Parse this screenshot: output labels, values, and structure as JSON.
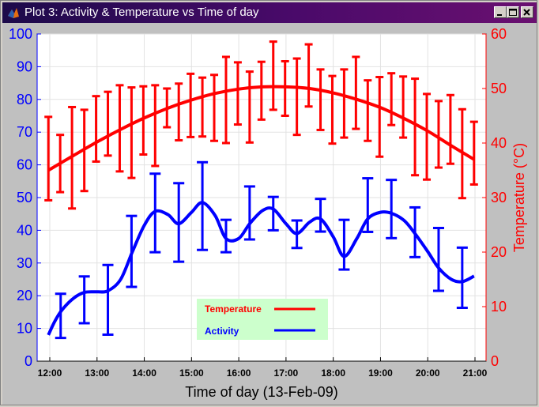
{
  "window": {
    "title": "Plot 3: Activity & Temperature vs Time of day",
    "minimize_icon": "minimize-icon",
    "maximize_icon": "maximize-icon",
    "close_icon": "close-icon",
    "app_icon": "matlab-icon"
  },
  "colors": {
    "temperature": "#ff0000",
    "activity": "#0000ff",
    "legend_bg": "#ccffcc",
    "plot_bg": "#ffffff",
    "figure_bg": "#c0c0c0"
  },
  "chart_data": {
    "type": "line",
    "title": "",
    "xlabel": "Time of day (13-Feb-09)",
    "ylabel_left": "",
    "ylabel_right": "Temperature (°C)",
    "x_ticks": [
      "12:00",
      "13:00",
      "14:00",
      "15:00",
      "16:00",
      "17:00",
      "18:00",
      "19:00",
      "20:00",
      "21:00"
    ],
    "xlim_hours": [
      11.75,
      21.25
    ],
    "ylim_left": [
      0,
      100
    ],
    "yticks_left": [
      "0",
      "10",
      "20",
      "30",
      "40",
      "50",
      "60",
      "70",
      "80",
      "90",
      "100"
    ],
    "ylim_right": [
      0,
      60
    ],
    "yticks_right": [
      "0",
      "10",
      "20",
      "30",
      "40",
      "50",
      "60"
    ],
    "grid": true,
    "legend": {
      "placement": "bottom-center",
      "entries": [
        {
          "label": "Temperature",
          "series": "temperature"
        },
        {
          "label": "Activity",
          "series": "activity"
        }
      ]
    },
    "series": [
      {
        "name": "Temperature",
        "axis": "right",
        "color": "#ff0000",
        "points": [
          {
            "x": 11.97,
            "y": 37.4,
            "lo": 29.5,
            "hi": 44.8
          },
          {
            "x": 12.22,
            "y": 36.5,
            "lo": 31.0,
            "hi": 41.5
          },
          {
            "x": 12.47,
            "y": 37.8,
            "lo": 28.0,
            "hi": 46.6
          },
          {
            "x": 12.73,
            "y": 38.8,
            "lo": 31.2,
            "hi": 46.1
          },
          {
            "x": 12.98,
            "y": 41.6,
            "lo": 36.6,
            "hi": 48.6
          },
          {
            "x": 13.23,
            "y": 42.5,
            "lo": 37.7,
            "hi": 49.4
          },
          {
            "x": 13.48,
            "y": 44.4,
            "lo": 34.8,
            "hi": 50.6
          },
          {
            "x": 13.73,
            "y": 42.4,
            "lo": 33.6,
            "hi": 50.2
          },
          {
            "x": 13.98,
            "y": 44.4,
            "lo": 37.9,
            "hi": 50.4
          },
          {
            "x": 14.23,
            "y": 43.3,
            "lo": 35.8,
            "hi": 50.6
          },
          {
            "x": 14.48,
            "y": 47.7,
            "lo": 42.9,
            "hi": 50.0
          },
          {
            "x": 14.73,
            "y": 46.8,
            "lo": 40.5,
            "hi": 50.9
          },
          {
            "x": 14.98,
            "y": 48.0,
            "lo": 41.1,
            "hi": 52.7
          },
          {
            "x": 15.23,
            "y": 48.1,
            "lo": 41.2,
            "hi": 52.0
          },
          {
            "x": 15.48,
            "y": 47.2,
            "lo": 40.4,
            "hi": 52.5
          },
          {
            "x": 15.73,
            "y": 48.0,
            "lo": 40.0,
            "hi": 55.8
          },
          {
            "x": 15.98,
            "y": 48.8,
            "lo": 43.4,
            "hi": 54.8
          },
          {
            "x": 16.23,
            "y": 47.3,
            "lo": 40.1,
            "hi": 53.1
          },
          {
            "x": 16.48,
            "y": 49.5,
            "lo": 44.3,
            "hi": 54.9
          },
          {
            "x": 16.73,
            "y": 52.4,
            "lo": 46.1,
            "hi": 58.6
          },
          {
            "x": 16.98,
            "y": 51.4,
            "lo": 45.0,
            "hi": 55.0
          },
          {
            "x": 17.23,
            "y": 51.8,
            "lo": 41.5,
            "hi": 55.5
          },
          {
            "x": 17.48,
            "y": 52.7,
            "lo": 46.7,
            "hi": 58.1
          },
          {
            "x": 17.73,
            "y": 49.1,
            "lo": 42.4,
            "hi": 53.5
          },
          {
            "x": 17.98,
            "y": 47.2,
            "lo": 39.9,
            "hi": 52.3
          },
          {
            "x": 18.23,
            "y": 47.3,
            "lo": 41.0,
            "hi": 53.5
          },
          {
            "x": 18.48,
            "y": 50.3,
            "lo": 42.6,
            "hi": 55.8
          },
          {
            "x": 18.73,
            "y": 47.5,
            "lo": 40.4,
            "hi": 51.5
          },
          {
            "x": 18.98,
            "y": 46.3,
            "lo": 37.5,
            "hi": 52.1
          },
          {
            "x": 19.23,
            "y": 47.8,
            "lo": 43.3,
            "hi": 52.8
          },
          {
            "x": 19.48,
            "y": 47.7,
            "lo": 41.0,
            "hi": 52.2
          },
          {
            "x": 19.73,
            "y": 43.3,
            "lo": 34.1,
            "hi": 51.8
          },
          {
            "x": 19.98,
            "y": 44.0,
            "lo": 33.3,
            "hi": 49.0
          },
          {
            "x": 20.23,
            "y": 42.0,
            "lo": 35.5,
            "hi": 47.7
          },
          {
            "x": 20.48,
            "y": 42.5,
            "lo": 36.2,
            "hi": 48.8
          },
          {
            "x": 20.73,
            "y": 37.9,
            "lo": 29.9,
            "hi": 46.2
          },
          {
            "x": 20.98,
            "y": 39.6,
            "lo": 32.4,
            "hi": 43.9
          }
        ],
        "trend": [
          {
            "x": 11.97,
            "y": 35.0
          },
          {
            "x": 12.5,
            "y": 37.7
          },
          {
            "x": 13.0,
            "y": 40.2
          },
          {
            "x": 13.5,
            "y": 42.5
          },
          {
            "x": 14.0,
            "y": 44.6
          },
          {
            "x": 14.5,
            "y": 46.4
          },
          {
            "x": 15.0,
            "y": 47.9
          },
          {
            "x": 15.5,
            "y": 49.1
          },
          {
            "x": 16.0,
            "y": 49.9
          },
          {
            "x": 16.5,
            "y": 50.3
          },
          {
            "x": 17.0,
            "y": 50.3
          },
          {
            "x": 17.5,
            "y": 50.0
          },
          {
            "x": 18.0,
            "y": 49.2
          },
          {
            "x": 18.5,
            "y": 48.0
          },
          {
            "x": 19.0,
            "y": 46.5
          },
          {
            "x": 19.5,
            "y": 44.5
          },
          {
            "x": 20.0,
            "y": 42.2
          },
          {
            "x": 20.5,
            "y": 39.5
          },
          {
            "x": 20.98,
            "y": 37.0
          }
        ]
      },
      {
        "name": "Activity",
        "axis": "left",
        "color": "#0000ff",
        "points": [
          {
            "x": 12.23,
            "y": 11.0,
            "lo": 7.1,
            "hi": 20.6
          },
          {
            "x": 12.73,
            "y": 18.8,
            "lo": 11.6,
            "hi": 25.9
          },
          {
            "x": 13.23,
            "y": 18.5,
            "lo": 8.1,
            "hi": 29.4
          },
          {
            "x": 13.73,
            "y": 34.0,
            "lo": 22.7,
            "hi": 44.4
          },
          {
            "x": 14.23,
            "y": 45.2,
            "lo": 33.3,
            "hi": 57.3
          },
          {
            "x": 14.73,
            "y": 42.4,
            "lo": 30.4,
            "hi": 54.4
          },
          {
            "x": 15.23,
            "y": 47.5,
            "lo": 34.0,
            "hi": 60.8
          },
          {
            "x": 15.73,
            "y": 38.2,
            "lo": 33.3,
            "hi": 43.2
          },
          {
            "x": 16.23,
            "y": 45.2,
            "lo": 37.2,
            "hi": 53.4
          },
          {
            "x": 16.73,
            "y": 45.0,
            "lo": 40.0,
            "hi": 50.2
          },
          {
            "x": 17.23,
            "y": 38.8,
            "lo": 34.6,
            "hi": 43.0
          },
          {
            "x": 17.73,
            "y": 44.6,
            "lo": 39.6,
            "hi": 49.6
          },
          {
            "x": 18.23,
            "y": 35.6,
            "lo": 28.0,
            "hi": 43.2
          },
          {
            "x": 18.73,
            "y": 47.6,
            "lo": 39.5,
            "hi": 55.9
          },
          {
            "x": 19.23,
            "y": 46.4,
            "lo": 37.6,
            "hi": 55.4
          },
          {
            "x": 19.73,
            "y": 39.4,
            "lo": 31.8,
            "hi": 47.0
          },
          {
            "x": 20.23,
            "y": 31.1,
            "lo": 21.5,
            "hi": 40.7
          },
          {
            "x": 20.73,
            "y": 25.5,
            "lo": 16.3,
            "hi": 34.7
          }
        ],
        "trend": [
          {
            "x": 11.97,
            "y": 8.0
          },
          {
            "x": 12.1,
            "y": 12.0
          },
          {
            "x": 12.25,
            "y": 15.5
          },
          {
            "x": 12.5,
            "y": 19.2
          },
          {
            "x": 12.73,
            "y": 21.0
          },
          {
            "x": 13.0,
            "y": 21.2
          },
          {
            "x": 13.23,
            "y": 21.5
          },
          {
            "x": 13.5,
            "y": 25.0
          },
          {
            "x": 13.75,
            "y": 33.5
          },
          {
            "x": 14.0,
            "y": 41.5
          },
          {
            "x": 14.23,
            "y": 45.8
          },
          {
            "x": 14.5,
            "y": 44.8
          },
          {
            "x": 14.73,
            "y": 42.0
          },
          {
            "x": 15.0,
            "y": 45.5
          },
          {
            "x": 15.23,
            "y": 48.5
          },
          {
            "x": 15.5,
            "y": 44.5
          },
          {
            "x": 15.73,
            "y": 37.5
          },
          {
            "x": 16.0,
            "y": 37.5
          },
          {
            "x": 16.23,
            "y": 42.0
          },
          {
            "x": 16.5,
            "y": 46.0
          },
          {
            "x": 16.73,
            "y": 46.5
          },
          {
            "x": 17.0,
            "y": 42.0
          },
          {
            "x": 17.23,
            "y": 39.0
          },
          {
            "x": 17.5,
            "y": 42.5
          },
          {
            "x": 17.73,
            "y": 43.5
          },
          {
            "x": 18.0,
            "y": 38.0
          },
          {
            "x": 18.23,
            "y": 32.0
          },
          {
            "x": 18.5,
            "y": 37.5
          },
          {
            "x": 18.73,
            "y": 43.5
          },
          {
            "x": 19.0,
            "y": 45.5
          },
          {
            "x": 19.23,
            "y": 45.2
          },
          {
            "x": 19.5,
            "y": 43.0
          },
          {
            "x": 19.73,
            "y": 39.0
          },
          {
            "x": 20.0,
            "y": 33.5
          },
          {
            "x": 20.23,
            "y": 28.5
          },
          {
            "x": 20.5,
            "y": 25.0
          },
          {
            "x": 20.73,
            "y": 24.3
          },
          {
            "x": 20.98,
            "y": 26.0
          }
        ]
      }
    ]
  }
}
